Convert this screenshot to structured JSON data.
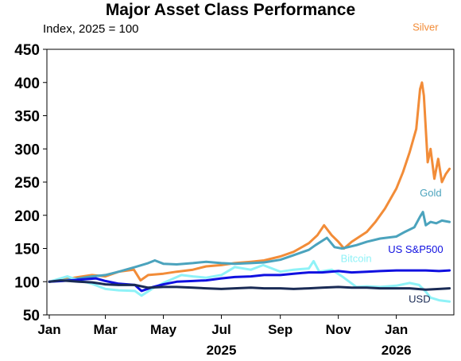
{
  "chart_data": {
    "type": "line",
    "title": "Major Asset Class Performance",
    "subtitle": "Index, 2025 = 100",
    "xlabel": "",
    "ylabel": "",
    "ylim": [
      50,
      450
    ],
    "yticks": [
      50,
      100,
      150,
      200,
      250,
      300,
      350,
      400,
      450
    ],
    "x_tick_labels": [
      "Jan",
      "Mar",
      "May",
      "Jul",
      "Sep",
      "Nov",
      "Jan"
    ],
    "x_tick_dates": [
      "2025-01-01",
      "2025-03-01",
      "2025-05-01",
      "2025-07-01",
      "2025-09-01",
      "2025-11-01",
      "2026-01-01"
    ],
    "year_labels": [
      {
        "text": "2025",
        "date": "2025-07-01"
      },
      {
        "text": "2026",
        "date": "2026-01-01"
      }
    ],
    "x_range": [
      "2025-01-01",
      "2026-02-28"
    ],
    "grid": false,
    "legend": "labels placed at line ends",
    "series": [
      {
        "name": "Silver",
        "color": "#f28c38",
        "points": [
          [
            "2025-01-01",
            100
          ],
          [
            "2025-01-15",
            103
          ],
          [
            "2025-02-01",
            107
          ],
          [
            "2025-02-15",
            110
          ],
          [
            "2025-03-01",
            108
          ],
          [
            "2025-03-15",
            115
          ],
          [
            "2025-03-31",
            118
          ],
          [
            "2025-04-07",
            102
          ],
          [
            "2025-04-15",
            110
          ],
          [
            "2025-05-01",
            112
          ],
          [
            "2025-05-15",
            115
          ],
          [
            "2025-06-01",
            118
          ],
          [
            "2025-06-15",
            123
          ],
          [
            "2025-07-01",
            125
          ],
          [
            "2025-07-15",
            128
          ],
          [
            "2025-08-01",
            130
          ],
          [
            "2025-08-15",
            132
          ],
          [
            "2025-09-01",
            138
          ],
          [
            "2025-09-15",
            145
          ],
          [
            "2025-10-01",
            158
          ],
          [
            "2025-10-10",
            170
          ],
          [
            "2025-10-17",
            185
          ],
          [
            "2025-10-25",
            170
          ],
          [
            "2025-11-01",
            160
          ],
          [
            "2025-11-07",
            150
          ],
          [
            "2025-11-15",
            160
          ],
          [
            "2025-12-01",
            175
          ],
          [
            "2025-12-10",
            190
          ],
          [
            "2025-12-20",
            210
          ],
          [
            "2026-01-01",
            240
          ],
          [
            "2026-01-08",
            265
          ],
          [
            "2026-01-15",
            295
          ],
          [
            "2026-01-22",
            330
          ],
          [
            "2026-01-26",
            390
          ],
          [
            "2026-01-28",
            400
          ],
          [
            "2026-01-30",
            380
          ],
          [
            "2026-02-01",
            330
          ],
          [
            "2026-02-03",
            280
          ],
          [
            "2026-02-06",
            300
          ],
          [
            "2026-02-10",
            255
          ],
          [
            "2026-02-14",
            285
          ],
          [
            "2026-02-18",
            250
          ],
          [
            "2026-02-22",
            262
          ],
          [
            "2026-02-26",
            270
          ]
        ]
      },
      {
        "name": "Gold",
        "color": "#4ba3bd",
        "points": [
          [
            "2025-01-01",
            100
          ],
          [
            "2025-01-15",
            102
          ],
          [
            "2025-02-01",
            105
          ],
          [
            "2025-02-15",
            108
          ],
          [
            "2025-03-01",
            110
          ],
          [
            "2025-03-15",
            115
          ],
          [
            "2025-04-01",
            122
          ],
          [
            "2025-04-15",
            128
          ],
          [
            "2025-04-22",
            132
          ],
          [
            "2025-05-01",
            127
          ],
          [
            "2025-05-15",
            126
          ],
          [
            "2025-06-01",
            128
          ],
          [
            "2025-06-15",
            130
          ],
          [
            "2025-07-01",
            128
          ],
          [
            "2025-07-15",
            127
          ],
          [
            "2025-08-01",
            128
          ],
          [
            "2025-08-15",
            129
          ],
          [
            "2025-09-01",
            133
          ],
          [
            "2025-09-15",
            140
          ],
          [
            "2025-10-01",
            148
          ],
          [
            "2025-10-08",
            155
          ],
          [
            "2025-10-20",
            166
          ],
          [
            "2025-10-28",
            152
          ],
          [
            "2025-11-05",
            150
          ],
          [
            "2025-11-20",
            155
          ],
          [
            "2025-12-01",
            160
          ],
          [
            "2025-12-15",
            165
          ],
          [
            "2026-01-01",
            168
          ],
          [
            "2026-01-10",
            175
          ],
          [
            "2026-01-20",
            182
          ],
          [
            "2026-01-26",
            198
          ],
          [
            "2026-01-29",
            205
          ],
          [
            "2026-02-01",
            185
          ],
          [
            "2026-02-06",
            190
          ],
          [
            "2026-02-12",
            188
          ],
          [
            "2026-02-18",
            192
          ],
          [
            "2026-02-26",
            190
          ]
        ]
      },
      {
        "name": "Bitcoin",
        "color": "#8ff2f7",
        "points": [
          [
            "2025-01-01",
            100
          ],
          [
            "2025-01-20",
            108
          ],
          [
            "2025-02-01",
            102
          ],
          [
            "2025-02-15",
            97
          ],
          [
            "2025-03-01",
            89
          ],
          [
            "2025-03-15",
            87
          ],
          [
            "2025-04-01",
            86
          ],
          [
            "2025-04-08",
            79
          ],
          [
            "2025-04-20",
            90
          ],
          [
            "2025-05-01",
            98
          ],
          [
            "2025-05-20",
            110
          ],
          [
            "2025-06-01",
            108
          ],
          [
            "2025-06-15",
            106
          ],
          [
            "2025-07-01",
            110
          ],
          [
            "2025-07-15",
            122
          ],
          [
            "2025-08-01",
            118
          ],
          [
            "2025-08-14",
            125
          ],
          [
            "2025-09-01",
            115
          ],
          [
            "2025-09-15",
            118
          ],
          [
            "2025-10-01",
            120
          ],
          [
            "2025-10-06",
            131
          ],
          [
            "2025-10-12",
            115
          ],
          [
            "2025-10-25",
            118
          ],
          [
            "2025-11-05",
            108
          ],
          [
            "2025-11-20",
            92
          ],
          [
            "2025-12-01",
            93
          ],
          [
            "2025-12-15",
            92
          ],
          [
            "2026-01-01",
            94
          ],
          [
            "2026-01-15",
            98
          ],
          [
            "2026-01-25",
            95
          ],
          [
            "2026-02-01",
            85
          ],
          [
            "2026-02-06",
            76
          ],
          [
            "2026-02-15",
            72
          ],
          [
            "2026-02-26",
            70
          ]
        ]
      },
      {
        "name": "US S&P500",
        "color": "#1010e0",
        "points": [
          [
            "2025-01-01",
            100
          ],
          [
            "2025-01-15",
            101
          ],
          [
            "2025-02-01",
            103
          ],
          [
            "2025-02-19",
            105
          ],
          [
            "2025-03-01",
            101
          ],
          [
            "2025-03-15",
            97
          ],
          [
            "2025-04-01",
            95
          ],
          [
            "2025-04-08",
            86
          ],
          [
            "2025-04-20",
            92
          ],
          [
            "2025-05-01",
            96
          ],
          [
            "2025-05-15",
            100
          ],
          [
            "2025-06-01",
            101
          ],
          [
            "2025-06-15",
            102
          ],
          [
            "2025-07-01",
            105
          ],
          [
            "2025-07-15",
            107
          ],
          [
            "2025-08-01",
            108
          ],
          [
            "2025-08-15",
            110
          ],
          [
            "2025-09-01",
            110
          ],
          [
            "2025-09-15",
            112
          ],
          [
            "2025-10-01",
            114
          ],
          [
            "2025-10-15",
            114
          ],
          [
            "2025-11-01",
            116
          ],
          [
            "2025-11-15",
            114
          ],
          [
            "2025-12-01",
            115
          ],
          [
            "2025-12-15",
            116
          ],
          [
            "2026-01-01",
            117
          ],
          [
            "2026-01-15",
            117
          ],
          [
            "2026-02-01",
            117
          ],
          [
            "2026-02-15",
            116
          ],
          [
            "2026-02-26",
            117
          ]
        ]
      },
      {
        "name": "USD",
        "color": "#1a2b55",
        "points": [
          [
            "2025-01-01",
            100
          ],
          [
            "2025-01-13",
            102
          ],
          [
            "2025-02-01",
            100
          ],
          [
            "2025-02-15",
            99
          ],
          [
            "2025-03-01",
            96
          ],
          [
            "2025-03-15",
            95
          ],
          [
            "2025-04-01",
            95
          ],
          [
            "2025-04-15",
            91
          ],
          [
            "2025-05-01",
            92
          ],
          [
            "2025-05-15",
            92
          ],
          [
            "2025-06-01",
            91
          ],
          [
            "2025-06-15",
            90
          ],
          [
            "2025-07-01",
            89
          ],
          [
            "2025-07-15",
            90
          ],
          [
            "2025-08-01",
            91
          ],
          [
            "2025-08-15",
            90
          ],
          [
            "2025-09-01",
            90
          ],
          [
            "2025-09-15",
            89
          ],
          [
            "2025-10-01",
            90
          ],
          [
            "2025-10-15",
            91
          ],
          [
            "2025-11-01",
            92
          ],
          [
            "2025-11-15",
            91
          ],
          [
            "2025-12-01",
            91
          ],
          [
            "2025-12-15",
            90
          ],
          [
            "2026-01-01",
            90
          ],
          [
            "2026-01-15",
            90
          ],
          [
            "2026-02-01",
            88
          ],
          [
            "2026-02-15",
            89
          ],
          [
            "2026-02-26",
            90
          ]
        ]
      }
    ]
  }
}
